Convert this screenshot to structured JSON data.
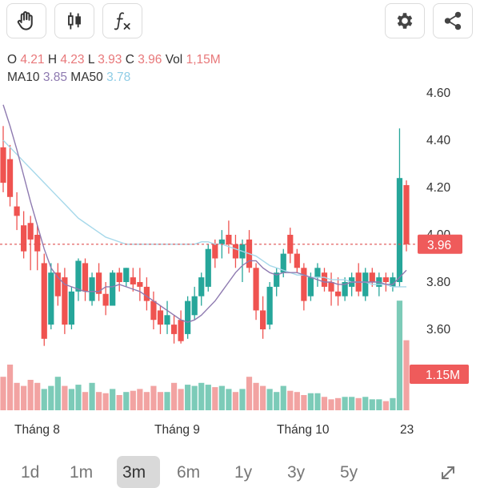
{
  "toolbar": {
    "left": [
      "hand-icon",
      "candlestick-icon",
      "function-icon"
    ],
    "right": [
      "gear-icon",
      "share-icon"
    ]
  },
  "ohlc": {
    "o_label": "O",
    "o": "4.21",
    "h_label": "H",
    "h": "4.23",
    "l_label": "L",
    "l": "3.93",
    "c_label": "C",
    "c": "3.96",
    "vol_label": "Vol",
    "vol": "1,15M"
  },
  "ma": {
    "ma10_label": "MA10",
    "ma10": "3.85",
    "ma50_label": "MA50",
    "ma50": "3.78"
  },
  "colors": {
    "up": "#26a69a",
    "down": "#ef5350",
    "ma10": "#8e7ab0",
    "ma50": "#a6d8ea",
    "price_line": "#e05050"
  },
  "chart_data": {
    "type": "candlestick",
    "y_ticks": [
      "4.60",
      "4.40",
      "4.20",
      "4.00",
      "3.80",
      "3.60"
    ],
    "ylim": [
      3.52,
      4.66
    ],
    "last_price_label": "3.96",
    "last_price": 3.96,
    "volume_label": "1.15M",
    "x_labels": [
      "Tháng 8",
      "Tháng 9",
      "Tháng 10",
      "23"
    ],
    "candles": [
      [
        4.37,
        4.46,
        4.18,
        4.22
      ],
      [
        4.32,
        4.38,
        4.12,
        4.16
      ],
      [
        4.12,
        4.18,
        4.02,
        4.08
      ],
      [
        4.04,
        4.1,
        3.9,
        3.93
      ],
      [
        4.05,
        4.08,
        3.85,
        3.98
      ],
      [
        4.0,
        4.04,
        3.85,
        3.93
      ],
      [
        3.88,
        3.92,
        3.53,
        3.56
      ],
      [
        3.62,
        3.88,
        3.6,
        3.84
      ],
      [
        3.84,
        3.88,
        3.7,
        3.74
      ],
      [
        3.82,
        3.86,
        3.58,
        3.62
      ],
      [
        3.62,
        3.78,
        3.6,
        3.76
      ],
      [
        3.76,
        3.9,
        3.72,
        3.89
      ],
      [
        3.88,
        3.9,
        3.72,
        3.76
      ],
      [
        3.72,
        3.84,
        3.7,
        3.82
      ],
      [
        3.84,
        3.88,
        3.72,
        3.75
      ],
      [
        3.75,
        3.8,
        3.66,
        3.7
      ],
      [
        3.7,
        3.85,
        3.7,
        3.84
      ],
      [
        3.84,
        3.86,
        3.76,
        3.8
      ],
      [
        3.8,
        3.86,
        3.78,
        3.86
      ],
      [
        3.82,
        3.86,
        3.76,
        3.79
      ],
      [
        3.8,
        3.86,
        3.72,
        3.78
      ],
      [
        3.78,
        3.82,
        3.68,
        3.72
      ],
      [
        3.72,
        3.76,
        3.6,
        3.64
      ],
      [
        3.68,
        3.7,
        3.58,
        3.62
      ],
      [
        3.62,
        3.72,
        3.58,
        3.66
      ],
      [
        3.62,
        3.66,
        3.54,
        3.58
      ],
      [
        3.64,
        3.68,
        3.54,
        3.55
      ],
      [
        3.58,
        3.74,
        3.56,
        3.72
      ],
      [
        3.66,
        3.78,
        3.64,
        3.74
      ],
      [
        3.74,
        3.84,
        3.7,
        3.82
      ],
      [
        3.78,
        3.96,
        3.76,
        3.94
      ],
      [
        3.96,
        3.98,
        3.86,
        3.9
      ],
      [
        3.96,
        4.02,
        3.9,
        3.98
      ],
      [
        4.0,
        4.06,
        3.92,
        3.96
      ],
      [
        3.96,
        4.0,
        3.86,
        3.9
      ],
      [
        3.9,
        3.98,
        3.8,
        3.96
      ],
      [
        3.98,
        4.02,
        3.84,
        3.86
      ],
      [
        3.86,
        3.88,
        3.64,
        3.68
      ],
      [
        3.68,
        3.74,
        3.56,
        3.6
      ],
      [
        3.62,
        3.8,
        3.6,
        3.78
      ],
      [
        3.78,
        3.86,
        3.74,
        3.84
      ],
      [
        3.84,
        3.94,
        3.82,
        3.92
      ],
      [
        4.0,
        4.03,
        3.88,
        3.92
      ],
      [
        3.92,
        3.94,
        3.84,
        3.86
      ],
      [
        3.86,
        3.88,
        3.68,
        3.72
      ],
      [
        3.74,
        3.84,
        3.72,
        3.82
      ],
      [
        3.82,
        3.88,
        3.78,
        3.86
      ],
      [
        3.84,
        3.86,
        3.76,
        3.78
      ],
      [
        3.8,
        3.84,
        3.7,
        3.76
      ],
      [
        3.76,
        3.82,
        3.7,
        3.74
      ],
      [
        3.74,
        3.82,
        3.72,
        3.8
      ],
      [
        3.78,
        3.84,
        3.74,
        3.82
      ],
      [
        3.84,
        3.88,
        3.74,
        3.76
      ],
      [
        3.74,
        3.86,
        3.72,
        3.84
      ],
      [
        3.84,
        3.86,
        3.78,
        3.8
      ],
      [
        3.78,
        3.84,
        3.74,
        3.82
      ],
      [
        3.82,
        3.84,
        3.76,
        3.8
      ],
      [
        3.78,
        3.84,
        3.76,
        3.82
      ],
      [
        3.8,
        4.45,
        3.78,
        4.24
      ],
      [
        4.21,
        4.23,
        3.93,
        3.96
      ]
    ],
    "volume": [
      [
        0.55,
        "down"
      ],
      [
        0.75,
        "down"
      ],
      [
        0.45,
        "down"
      ],
      [
        0.4,
        "down"
      ],
      [
        0.5,
        "down"
      ],
      [
        0.45,
        "down"
      ],
      [
        0.35,
        "up"
      ],
      [
        0.4,
        "up"
      ],
      [
        0.55,
        "up"
      ],
      [
        0.4,
        "down"
      ],
      [
        0.35,
        "up"
      ],
      [
        0.42,
        "up"
      ],
      [
        0.3,
        "down"
      ],
      [
        0.45,
        "up"
      ],
      [
        0.3,
        "down"
      ],
      [
        0.28,
        "down"
      ],
      [
        0.35,
        "up"
      ],
      [
        0.25,
        "down"
      ],
      [
        0.3,
        "up"
      ],
      [
        0.32,
        "down"
      ],
      [
        0.35,
        "down"
      ],
      [
        0.3,
        "down"
      ],
      [
        0.4,
        "down"
      ],
      [
        0.3,
        "down"
      ],
      [
        0.3,
        "up"
      ],
      [
        0.45,
        "down"
      ],
      [
        0.35,
        "down"
      ],
      [
        0.42,
        "up"
      ],
      [
        0.4,
        "up"
      ],
      [
        0.45,
        "up"
      ],
      [
        0.42,
        "up"
      ],
      [
        0.38,
        "down"
      ],
      [
        0.4,
        "up"
      ],
      [
        0.35,
        "up"
      ],
      [
        0.3,
        "down"
      ],
      [
        0.35,
        "up"
      ],
      [
        0.55,
        "down"
      ],
      [
        0.45,
        "down"
      ],
      [
        0.4,
        "down"
      ],
      [
        0.35,
        "up"
      ],
      [
        0.3,
        "up"
      ],
      [
        0.4,
        "up"
      ],
      [
        0.32,
        "down"
      ],
      [
        0.3,
        "down"
      ],
      [
        0.25,
        "down"
      ],
      [
        0.28,
        "up"
      ],
      [
        0.28,
        "up"
      ],
      [
        0.22,
        "down"
      ],
      [
        0.18,
        "down"
      ],
      [
        0.2,
        "down"
      ],
      [
        0.22,
        "up"
      ],
      [
        0.22,
        "up"
      ],
      [
        0.2,
        "down"
      ],
      [
        0.22,
        "up"
      ],
      [
        0.18,
        "up"
      ],
      [
        0.18,
        "up"
      ],
      [
        0.15,
        "down"
      ],
      [
        0.2,
        "up"
      ],
      [
        1.8,
        "up"
      ],
      [
        1.15,
        "down"
      ]
    ],
    "ma10": [
      4.55,
      4.46,
      4.36,
      4.25,
      4.14,
      4.04,
      3.94,
      3.86,
      3.82,
      3.79,
      3.78,
      3.77,
      3.76,
      3.76,
      3.76,
      3.78,
      3.78,
      3.79,
      3.78,
      3.77,
      3.76,
      3.74,
      3.72,
      3.7,
      3.68,
      3.66,
      3.64,
      3.63,
      3.64,
      3.66,
      3.69,
      3.72,
      3.76,
      3.8,
      3.84,
      3.87,
      3.89,
      3.89,
      3.86,
      3.84,
      3.83,
      3.84,
      3.84,
      3.84,
      3.83,
      3.82,
      3.81,
      3.8,
      3.8,
      3.79,
      3.79,
      3.8,
      3.8,
      3.8,
      3.8,
      3.8,
      3.79,
      3.79,
      3.82,
      3.85
    ],
    "ma50": [
      4.4,
      4.37,
      4.34,
      4.31,
      4.28,
      4.25,
      4.22,
      4.19,
      4.16,
      4.13,
      4.1,
      4.07,
      4.05,
      4.03,
      4.01,
      3.99,
      3.98,
      3.97,
      3.96,
      3.96,
      3.96,
      3.96,
      3.96,
      3.96,
      3.96,
      3.96,
      3.96,
      3.96,
      3.96,
      3.97,
      3.97,
      3.96,
      3.96,
      3.95,
      3.94,
      3.93,
      3.92,
      3.91,
      3.89,
      3.87,
      3.86,
      3.85,
      3.84,
      3.83,
      3.83,
      3.82,
      3.82,
      3.82,
      3.81,
      3.81,
      3.81,
      3.8,
      3.8,
      3.8,
      3.79,
      3.79,
      3.79,
      3.78,
      3.78,
      3.78
    ]
  },
  "timeframes": {
    "tabs": [
      "1d",
      "1m",
      "3m",
      "6m",
      "1y",
      "3y",
      "5y"
    ],
    "active": "3m",
    "expand_icon": "expand-icon"
  }
}
